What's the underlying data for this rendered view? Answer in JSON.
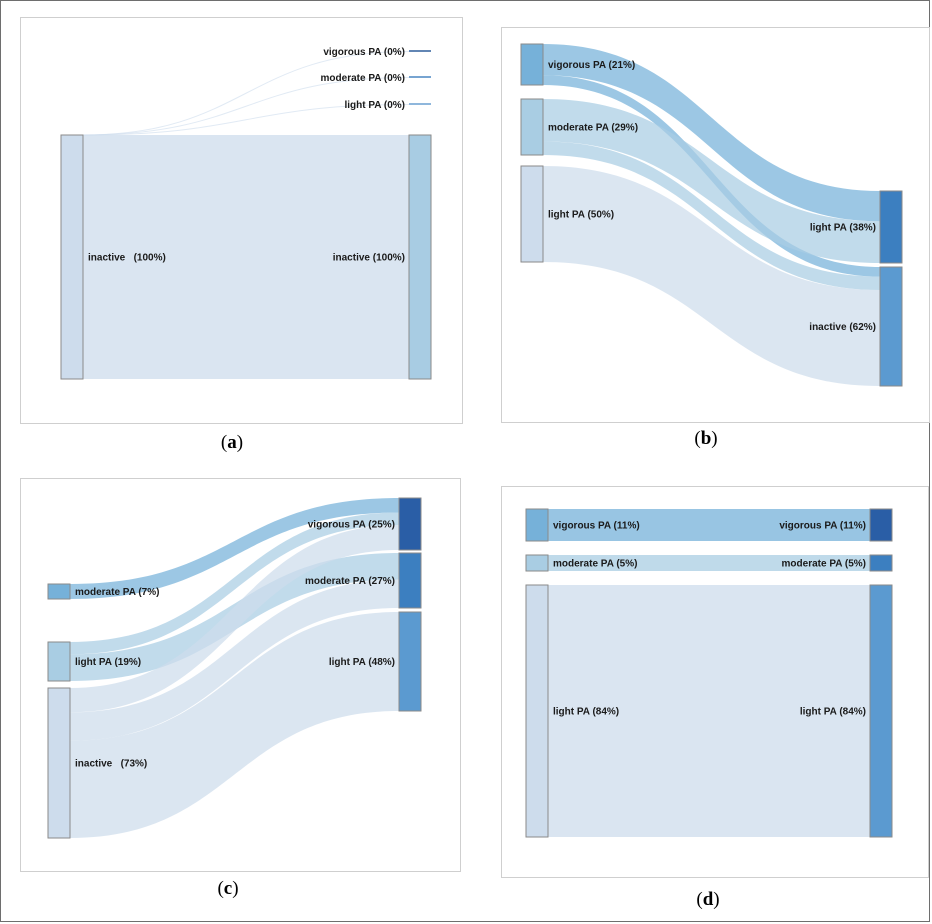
{
  "panels": [
    {
      "caption": "a",
      "left_nodes": [
        {
          "label": "inactive   (100%)",
          "color": "#cddcec"
        }
      ],
      "right_nodes": [
        {
          "label": "vigorous PA (0%)",
          "color": "#2f5f9c"
        },
        {
          "label": "moderate PA (0%)",
          "color": "#4a86c2"
        },
        {
          "label": "light PA (0%)",
          "color": "#6a9fd0"
        },
        {
          "label": "inactive (100%)",
          "color": "#a8cce3"
        }
      ],
      "flows": [
        {
          "from": "inactive",
          "to": "vigorous PA",
          "value": 0
        },
        {
          "from": "inactive",
          "to": "moderate PA",
          "value": 0
        },
        {
          "from": "inactive",
          "to": "light PA",
          "value": 0
        },
        {
          "from": "inactive",
          "to": "inactive",
          "value": 100
        }
      ]
    },
    {
      "caption": "b",
      "left_nodes": [
        {
          "label": "vigorous PA (21%)",
          "color": "#76b1d9"
        },
        {
          "label": "moderate PA (29%)",
          "color": "#a9cde3"
        },
        {
          "label": "light PA (50%)",
          "color": "#cddcec"
        }
      ],
      "right_nodes": [
        {
          "label": "light PA (38%)",
          "color": "#3c7fc0"
        },
        {
          "label": "inactive (62%)",
          "color": "#5b9ad0"
        }
      ],
      "flows": [
        {
          "from": "vigorous PA",
          "to": "light PA",
          "value": 16
        },
        {
          "from": "vigorous PA",
          "to": "inactive",
          "value": 5
        },
        {
          "from": "moderate PA",
          "to": "light PA",
          "value": 22
        },
        {
          "from": "moderate PA",
          "to": "inactive",
          "value": 7
        },
        {
          "from": "light PA",
          "to": "inactive",
          "value": 50
        }
      ]
    },
    {
      "caption": "c",
      "left_nodes": [
        {
          "label": "moderate PA (7%)",
          "color": "#76b1d9"
        },
        {
          "label": "light PA (19%)",
          "color": "#a9cde3"
        },
        {
          "label": "inactive   (73%)",
          "color": "#cddcec"
        }
      ],
      "right_nodes": [
        {
          "label": "vigorous PA (25%)",
          "color": "#2a5ea6"
        },
        {
          "label": "moderate PA (27%)",
          "color": "#3c7fc0"
        },
        {
          "label": "light PA (48%)",
          "color": "#5b9ad0"
        }
      ],
      "flows": [
        {
          "from": "moderate PA",
          "to": "vigorous PA",
          "value": 7
        },
        {
          "from": "light PA",
          "to": "vigorous PA",
          "value": 6
        },
        {
          "from": "light PA",
          "to": "moderate PA",
          "value": 13
        },
        {
          "from": "inactive",
          "to": "vigorous PA",
          "value": 12
        },
        {
          "from": "inactive",
          "to": "moderate PA",
          "value": 14
        },
        {
          "from": "inactive",
          "to": "light PA",
          "value": 48
        }
      ]
    },
    {
      "caption": "d",
      "left_nodes": [
        {
          "label": "vigorous PA (11%)",
          "color": "#76b1d9"
        },
        {
          "label": "moderate PA (5%)",
          "color": "#a9cde3"
        },
        {
          "label": "light PA (84%)",
          "color": "#cddcec"
        }
      ],
      "right_nodes": [
        {
          "label": "vigorous PA (11%)",
          "color": "#2a5ea6"
        },
        {
          "label": "moderate PA (5%)",
          "color": "#3c7fc0"
        },
        {
          "label": "light PA (84%)",
          "color": "#5b9ad0"
        }
      ],
      "flows": [
        {
          "from": "vigorous PA",
          "to": "vigorous PA",
          "value": 11
        },
        {
          "from": "moderate PA",
          "to": "moderate PA",
          "value": 5
        },
        {
          "from": "light PA",
          "to": "light PA",
          "value": 84
        }
      ]
    }
  ]
}
